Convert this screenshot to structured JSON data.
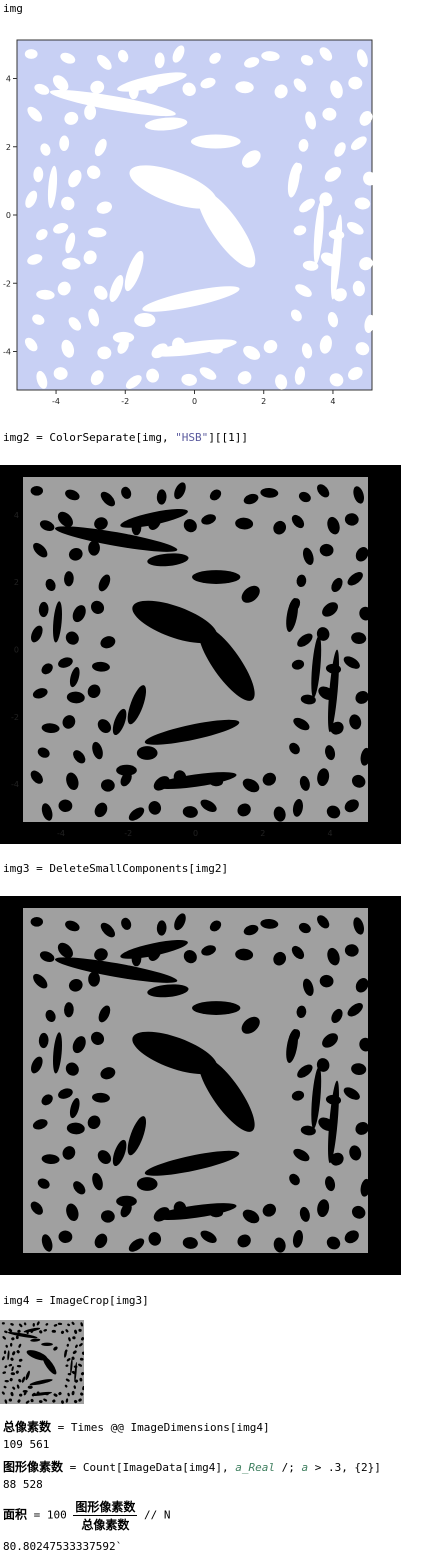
{
  "cells": {
    "c1": {
      "input": "img"
    },
    "c2": {
      "input_pre": "img2 = ColorSeparate[img, ",
      "input_str": "\"HSB\"",
      "input_post": "][[1]]"
    },
    "c3": {
      "input": "img3 = DeleteSmallComponents[img2]"
    },
    "c4": {
      "input": "img4 = ImageCrop[img3]"
    },
    "c5": {
      "var": "总像素数",
      "expr": " = Times @@ ImageDimensions[img4]",
      "output": "109 561"
    },
    "c6": {
      "var": "图形像素数",
      "expr_pre": " = Count[ImageData[img4], ",
      "pattern": "a_Real",
      "expr_mid": " /; ",
      "pattern2": "a",
      "expr_post": " > .3, {2}]",
      "output": "88 528"
    },
    "c7": {
      "var": "面积",
      "expr_pre": " = 100 ",
      "num": "图形像素数",
      "den": "总像素数",
      "expr_post": " // N",
      "output": "80.80247533337592`"
    }
  },
  "plot": {
    "x_ticks": [
      "-4",
      "-2",
      "0",
      "2",
      "4"
    ],
    "y_ticks": [
      "4",
      "2",
      "0",
      "-2",
      "-4"
    ],
    "fill_color": "#c8d0f4",
    "hole_color": "#ffffff"
  },
  "gray": {
    "foreground": "#a0a0a0",
    "background": "#000000"
  }
}
